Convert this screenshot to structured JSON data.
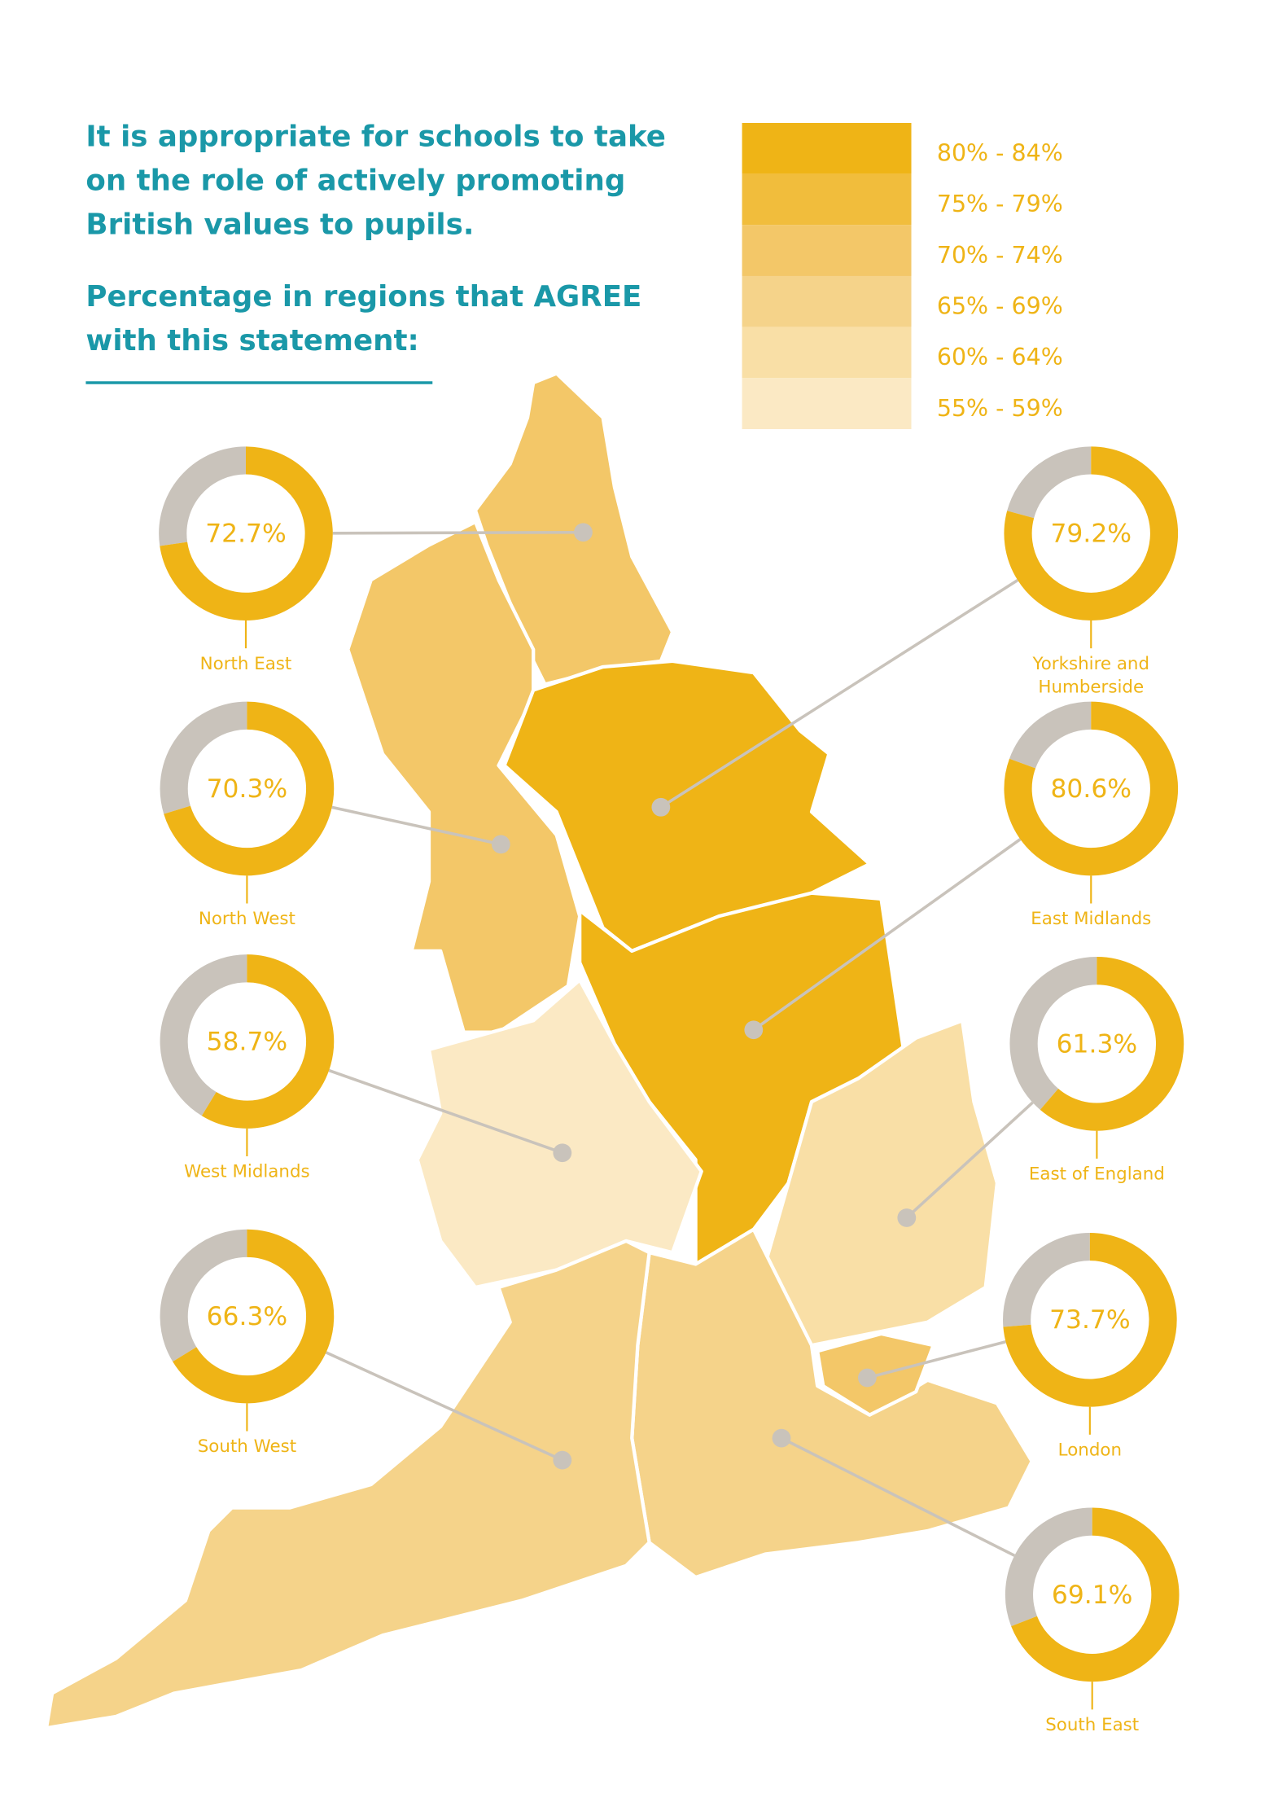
{
  "chart_data": {
    "type": "donut",
    "title": "It is appropriate for schools to take on the role of actively promoting British values to pupils.",
    "subtitle": "Percentage in regions that AGREE with this statement:",
    "categories": [
      "North East",
      "North West",
      "West Midlands",
      "South West",
      "Yorkshire and Humberside",
      "East Midlands",
      "East of England",
      "London",
      "South East"
    ],
    "values": [
      72.7,
      70.3,
      58.7,
      66.3,
      79.2,
      80.6,
      61.3,
      73.7,
      69.1
    ],
    "value_labels": [
      "72.7%",
      "70.3%",
      "58.7%",
      "66.3%",
      "79.2%",
      "80.6%",
      "61.3%",
      "73.7%",
      "69.1%"
    ],
    "ylim": [
      0,
      100
    ],
    "color": "#efb416",
    "remainder_color": "#c9c3bb",
    "legend": [
      {
        "label": "80% - 84%",
        "color": "#efb416"
      },
      {
        "label": "75% - 79%",
        "color": "#f1bd3c"
      },
      {
        "label": "70% - 74%",
        "color": "#f3c768"
      },
      {
        "label": "65% - 69%",
        "color": "#f5d38a"
      },
      {
        "label": "60% - 64%",
        "color": "#f9dfa6"
      },
      {
        "label": "55% - 59%",
        "color": "#fbe9c4"
      }
    ]
  }
}
